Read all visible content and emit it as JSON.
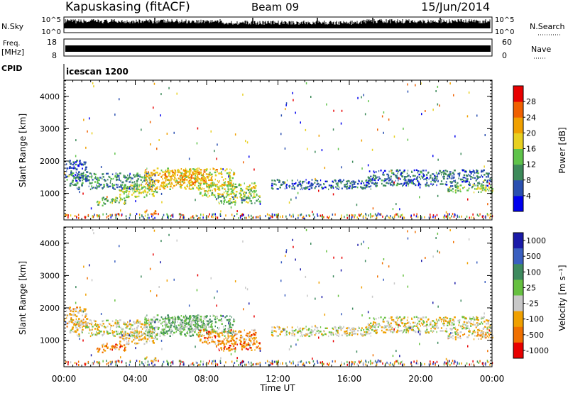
{
  "header": {
    "station": "Kapuskasing (fitACF)",
    "beam": "Beam 09",
    "date": "15/Jun/2014"
  },
  "top_panels": {
    "nsky_label": "N.Sky",
    "nsearch_label": "N.Search",
    "noise_ticks": [
      "10^5",
      "10^0"
    ],
    "freq_label": "Freq.",
    "freq_unit": "[MHz]",
    "freq_ticks": [
      "18",
      "8"
    ],
    "nave_label": "Nave",
    "nave_ticks": [
      "60",
      "0"
    ],
    "cpid_label": "CPID",
    "cpid_value": "icescan 1200"
  },
  "colors": {
    "power": [
      "#0000ee",
      "#2a4fb0",
      "#3d8a5a",
      "#5fc34a",
      "#e8d020",
      "#f0a000",
      "#f06000",
      "#e80000"
    ],
    "velocity": [
      "#1a1aa8",
      "#3a5fc0",
      "#3e8a5e",
      "#66c040",
      "#c8c8c8",
      "#f0a000",
      "#f07000",
      "#e80000"
    ]
  },
  "chart_data": [
    {
      "type": "heatmap",
      "name": "power",
      "ylabel": "Slant Range [km]",
      "xlabel": "Time UT",
      "xlim_hours": [
        0,
        24
      ],
      "x_ticks": [
        "00:00",
        "04:00",
        "08:00",
        "12:00",
        "16:00",
        "20:00",
        "00:00"
      ],
      "ylim": [
        180,
        4500
      ],
      "y_ticks": [
        1000,
        2000,
        3000,
        4000
      ],
      "colorbar_label": "Power [dB]",
      "colorbar_ticks": [
        "4",
        "8",
        "12",
        "16",
        "20",
        "24",
        "28"
      ],
      "blobs": [
        {
          "t0": 0.1,
          "t1": 1.3,
          "r0": 1400,
          "r1": 2050,
          "level": 1.3
        },
        {
          "t0": 0.3,
          "t1": 5.0,
          "r0": 1150,
          "r1": 1650,
          "level": 1.9
        },
        {
          "t0": 1.8,
          "t1": 3.4,
          "r0": 650,
          "r1": 900,
          "level": 2.8
        },
        {
          "t0": 3.0,
          "t1": 5.2,
          "r0": 900,
          "r1": 1300,
          "level": 3.4
        },
        {
          "t0": 4.5,
          "t1": 9.5,
          "r0": 1150,
          "r1": 1800,
          "level": 4.3
        },
        {
          "t0": 5.5,
          "t1": 8.0,
          "r0": 1350,
          "r1": 1750,
          "level": 5.0
        },
        {
          "t0": 7.5,
          "t1": 10.8,
          "r0": 900,
          "r1": 1350,
          "level": 3.6
        },
        {
          "t0": 8.5,
          "t1": 11.0,
          "r0": 700,
          "r1": 950,
          "level": 2.6
        },
        {
          "t0": 4.5,
          "t1": 5.2,
          "r0": 380,
          "r1": 520,
          "level": 5.2
        },
        {
          "t0": 11.5,
          "t1": 17.5,
          "r0": 1150,
          "r1": 1450,
          "level": 1.3
        },
        {
          "t0": 17.0,
          "t1": 24.0,
          "r0": 1250,
          "r1": 1750,
          "level": 1.4
        },
        {
          "t0": 21.5,
          "t1": 24.0,
          "r0": 1050,
          "r1": 1300,
          "level": 3.2
        }
      ]
    },
    {
      "type": "heatmap",
      "name": "velocity",
      "ylabel": "Slant Range [km]",
      "xlabel": "Time UT",
      "xlim_hours": [
        0,
        24
      ],
      "x_ticks": [
        "00:00",
        "04:00",
        "08:00",
        "12:00",
        "16:00",
        "20:00",
        "00:00"
      ],
      "ylim": [
        180,
        4500
      ],
      "y_ticks": [
        1000,
        2000,
        3000,
        4000
      ],
      "colorbar_label": "Velocity [m s⁻¹]",
      "colorbar_ticks": [
        "1000",
        "500",
        "100",
        "25",
        "-25",
        "-100",
        "-500",
        "-1000"
      ],
      "blobs": [
        {
          "t0": 0.1,
          "t1": 1.3,
          "r0": 1400,
          "r1": 2050,
          "level": 5.0
        },
        {
          "t0": 0.3,
          "t1": 5.0,
          "r0": 1150,
          "r1": 1650,
          "level": 4.2
        },
        {
          "t0": 1.8,
          "t1": 3.4,
          "r0": 650,
          "r1": 900,
          "level": 5.5
        },
        {
          "t0": 3.0,
          "t1": 5.2,
          "r0": 900,
          "r1": 1300,
          "level": 4.4
        },
        {
          "t0": 4.5,
          "t1": 9.5,
          "r0": 1150,
          "r1": 1800,
          "level": 2.8
        },
        {
          "t0": 5.5,
          "t1": 8.0,
          "r0": 1350,
          "r1": 1750,
          "level": 3.2
        },
        {
          "t0": 7.5,
          "t1": 10.8,
          "r0": 900,
          "r1": 1350,
          "level": 5.4
        },
        {
          "t0": 8.5,
          "t1": 11.0,
          "r0": 700,
          "r1": 950,
          "level": 5.8
        },
        {
          "t0": 4.5,
          "t1": 5.2,
          "r0": 380,
          "r1": 520,
          "level": 4.0
        },
        {
          "t0": 11.5,
          "t1": 17.5,
          "r0": 1150,
          "r1": 1450,
          "level": 4.0
        },
        {
          "t0": 17.0,
          "t1": 24.0,
          "r0": 1250,
          "r1": 1750,
          "level": 4.1
        },
        {
          "t0": 21.5,
          "t1": 24.0,
          "r0": 1050,
          "r1": 1300,
          "level": 4.5
        }
      ]
    }
  ]
}
